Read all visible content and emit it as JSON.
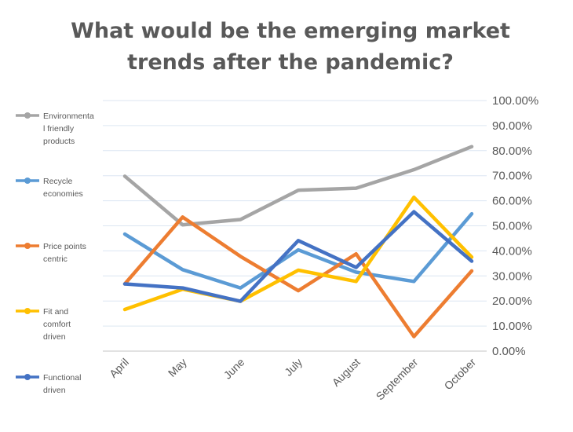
{
  "chart_data": {
    "type": "line",
    "title": [
      "What would be the emerging market",
      "trends after the pandemic?"
    ],
    "categories": [
      "April",
      "May",
      "June",
      "July",
      "August",
      "September",
      "October"
    ],
    "ylim": [
      0,
      100
    ],
    "yticks": [
      "0.00%",
      "10.00%",
      "20.00%",
      "30.00%",
      "40.00%",
      "50.00%",
      "60.00%",
      "70.00%",
      "80.00%",
      "90.00%",
      "100.00%"
    ],
    "grid": true,
    "legend_position": "left",
    "series": [
      {
        "name": "Environmentally friendly products",
        "legend_lines": [
          "Environmenta",
          "l friendly",
          "products"
        ],
        "color": "#A5A5A5",
        "values": [
          69.8,
          50.4,
          52.5,
          64.2,
          65,
          72.4,
          81.6
        ]
      },
      {
        "name": "Recycle economies",
        "legend_lines": [
          "Recycle",
          "economies"
        ],
        "color": "#5B9BD5",
        "values": [
          46.7,
          32.5,
          25.2,
          40.4,
          31.5,
          27.8,
          54.8
        ]
      },
      {
        "name": "Price points centric",
        "legend_lines": [
          "Price points",
          "centric"
        ],
        "color": "#ED7D31",
        "values": [
          26.8,
          53.5,
          37.8,
          24.1,
          38.8,
          5.8,
          32
        ]
      },
      {
        "name": "Fit and comfort driven",
        "legend_lines": [
          "Fit and",
          "comfort",
          "driven"
        ],
        "color": "#FFC000",
        "values": [
          16.6,
          24.7,
          19.9,
          32.3,
          27.8,
          61.4,
          37.5
        ]
      },
      {
        "name": "Functional driven",
        "legend_lines": [
          "Functional",
          "driven"
        ],
        "color": "#4472C4",
        "values": [
          26.8,
          25.2,
          19.9,
          44.1,
          33.4,
          55.6,
          35.9
        ]
      }
    ]
  }
}
